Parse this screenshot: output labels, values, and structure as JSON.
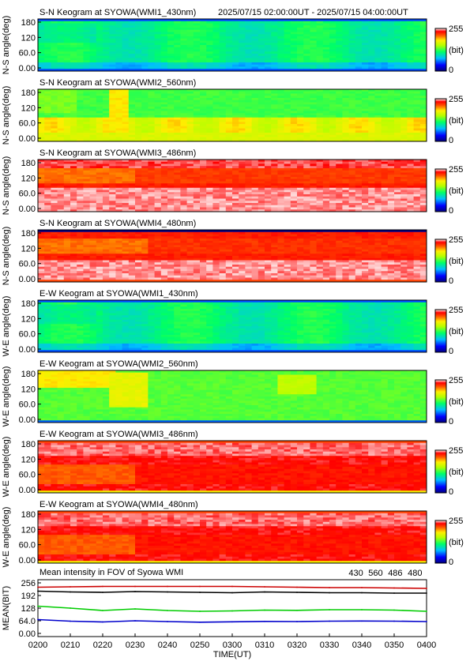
{
  "header": {
    "range_text": "2025/07/15 02:00:00UT - 2025/07/15 04:00:00UT"
  },
  "colorbar": {
    "max_label": "255",
    "min_label": "0",
    "unit_label": "(bit)"
  },
  "chart_data": [
    {
      "type": "heatmap",
      "title": "S-N Keogram at SYOWA(WMI1_430nm)",
      "ylabel": "N-S angle(deg)",
      "yticks": [
        "180",
        "120",
        "60.0",
        "0.00"
      ],
      "ylim": [
        0,
        180
      ],
      "profile": "green_blue",
      "clim": [
        0,
        255
      ]
    },
    {
      "type": "heatmap",
      "title": "S-N Keogram at SYOWA(WMI2_560nm)",
      "ylabel": "N-S angle(deg)",
      "yticks": [
        "180",
        "120",
        "60.0",
        "0.00"
      ],
      "ylim": [
        0,
        180
      ],
      "profile": "green_yellow",
      "clim": [
        0,
        255
      ]
    },
    {
      "type": "heatmap",
      "title": "S-N Keogram at SYOWA(WMI3_486nm)",
      "ylabel": "N-S angle(deg)",
      "yticks": [
        "180",
        "120",
        "60.0",
        "0.00"
      ],
      "ylim": [
        0,
        180
      ],
      "profile": "red_white",
      "clim": [
        0,
        255
      ]
    },
    {
      "type": "heatmap",
      "title": "S-N Keogram at SYOWA(WMI4_480nm)",
      "ylabel": "N-S angle(deg)",
      "yticks": [
        "180",
        "120",
        "60.0",
        "0.00"
      ],
      "ylim": [
        0,
        180
      ],
      "profile": "red_white_dark",
      "clim": [
        0,
        255
      ]
    },
    {
      "type": "heatmap",
      "title": "E-W Keogram at SYOWA(WMI1_430nm)",
      "ylabel": "W-E angle(deg)",
      "yticks": [
        "180",
        "120",
        "60.0",
        "0.00"
      ],
      "ylim": [
        0,
        180
      ],
      "profile": "green_blue",
      "clim": [
        0,
        255
      ]
    },
    {
      "type": "heatmap",
      "title": "E-W Keogram at SYOWA(WMI2_560nm)",
      "ylabel": "W-E angle(deg)",
      "yticks": [
        "180",
        "120",
        "60.0",
        "0.00"
      ],
      "ylim": [
        0,
        180
      ],
      "profile": "green_yellow_ew",
      "clim": [
        0,
        255
      ]
    },
    {
      "type": "heatmap",
      "title": "E-W Keogram at SYOWA(WMI3_486nm)",
      "ylabel": "W-E angle(deg)",
      "yticks": [
        "180",
        "120",
        "60.0",
        "0.00"
      ],
      "ylim": [
        0,
        180
      ],
      "profile": "red_white_ew",
      "clim": [
        0,
        255
      ]
    },
    {
      "type": "heatmap",
      "title": "E-W Keogram at SYOWA(WMI4_480nm)",
      "ylabel": "W-E angle(deg)",
      "yticks": [
        "180",
        "120",
        "60.0",
        "0.00"
      ],
      "ylim": [
        0,
        180
      ],
      "profile": "red_white_ew",
      "clim": [
        0,
        255
      ]
    },
    {
      "type": "line",
      "title": "Mean intensity in FOV of Syowa WMI",
      "xlabel": "TIME(UT)",
      "ylabel": "MEAN(BIT)",
      "ylim": [
        0,
        256
      ],
      "yticks": [
        "256",
        "192",
        "128",
        "64.0",
        "0.00"
      ],
      "x": [
        "0200",
        "0210",
        "0220",
        "0230",
        "0240",
        "0250",
        "0300",
        "0310",
        "0320",
        "0330",
        "0340",
        "0350",
        "0400"
      ],
      "series": [
        {
          "name": "430",
          "color": "#0000cc",
          "values": [
            70,
            62,
            58,
            64,
            60,
            57,
            59,
            61,
            60,
            62,
            63,
            62,
            60
          ]
        },
        {
          "name": "560",
          "color": "#00cc00",
          "values": [
            138,
            128,
            116,
            124,
            116,
            112,
            114,
            118,
            117,
            120,
            120,
            118,
            112
          ]
        },
        {
          "name": "486",
          "color": "#cc0000",
          "values": [
            234,
            236,
            238,
            238,
            238,
            238,
            238,
            236,
            234,
            232,
            232,
            230,
            228
          ]
        },
        {
          "name": "480",
          "color": "#000000",
          "values": [
            214,
            210,
            208,
            212,
            210,
            208,
            206,
            210,
            208,
            206,
            206,
            204,
            204
          ]
        }
      ]
    }
  ]
}
